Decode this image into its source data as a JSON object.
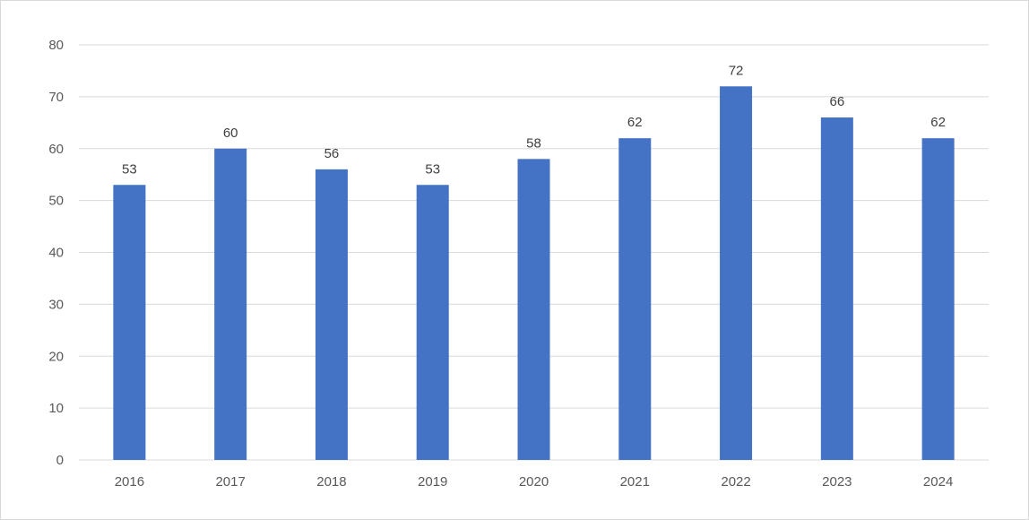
{
  "chart_data": {
    "type": "bar",
    "title": "",
    "xlabel": "",
    "ylabel": "",
    "categories": [
      "2016",
      "2017",
      "2018",
      "2019",
      "2020",
      "2021",
      "2022",
      "2023",
      "2024"
    ],
    "values": [
      53,
      60,
      56,
      53,
      58,
      62,
      72,
      66,
      62
    ],
    "ylim": [
      0,
      80
    ],
    "yticks": [
      0,
      10,
      20,
      30,
      40,
      50,
      60,
      70,
      80
    ],
    "grid": true,
    "legend": "none",
    "data_labels": true,
    "bar_color": "#4472C4"
  }
}
